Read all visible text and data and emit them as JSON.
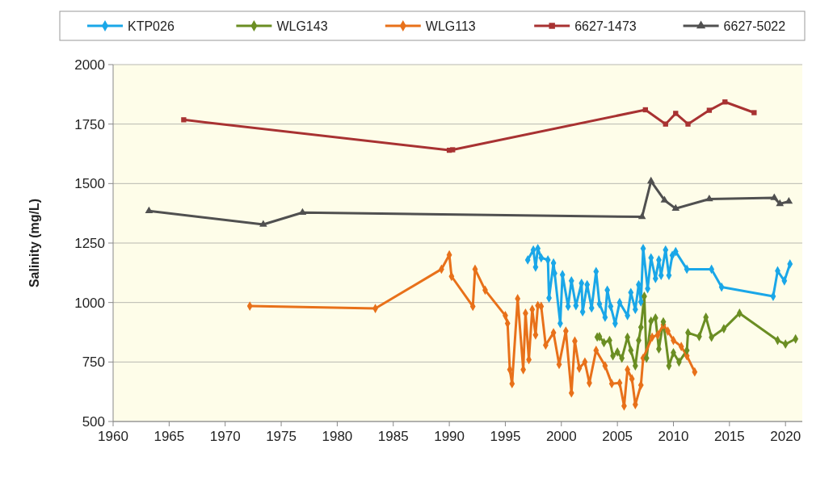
{
  "chart_data": {
    "type": "line",
    "ylabel": "Salinity (mg/L)",
    "xlim": [
      1960,
      2021.5
    ],
    "xticks": [
      1960,
      1965,
      1970,
      1975,
      1980,
      1985,
      1990,
      1995,
      2000,
      2005,
      2010,
      2015,
      2020
    ],
    "ylim": [
      500,
      2000
    ],
    "yticks": [
      500,
      750,
      1000,
      1250,
      1500,
      1750,
      2000
    ],
    "grid": "y",
    "legend": "top",
    "line_style": "solid",
    "series": [
      {
        "name": "KTP026",
        "color": "#1aa7e8",
        "marker": "diamond",
        "x": [
          1997.0,
          1997.5,
          1997.7,
          1997.9,
          1998.2,
          1998.8,
          1998.9,
          1999.3,
          1999.4,
          1999.9,
          2000.1,
          2000.6,
          2000.9,
          2001.3,
          2001.8,
          2001.9,
          2002.3,
          2002.7,
          2003.1,
          2003.4,
          2003.9,
          2004.1,
          2004.4,
          2004.8,
          2005.2,
          2005.9,
          2006.2,
          2006.6,
          2006.9,
          2007.1,
          2007.3,
          2007.7,
          2008.0,
          2008.4,
          2008.7,
          2008.9,
          2009.3,
          2009.6,
          2009.9,
          2010.2,
          2011.2,
          2013.4,
          2014.3,
          2018.9,
          2019.3,
          2019.9,
          2020.4
        ],
        "values": [
          1179,
          1221,
          1149,
          1227,
          1188,
          1179,
          1019,
          1166,
          1123,
          912,
          1117,
          984,
          1091,
          987,
          1081,
          961,
          1075,
          977,
          1130,
          994,
          938,
          1052,
          984,
          912,
          1000,
          945,
          1042,
          971,
          1075,
          1003,
          1227,
          1058,
          1188,
          1101,
          1179,
          1114,
          1221,
          1114,
          1198,
          1214,
          1140,
          1140,
          1065,
          1026,
          1133,
          1091,
          1162
        ]
      },
      {
        "name": "WLG143",
        "color": "#6b8e23",
        "marker": "diamond",
        "x": [
          2003.2,
          2003.4,
          2003.8,
          2004.3,
          2004.6,
          2005.0,
          2005.4,
          2005.9,
          2006.2,
          2006.6,
          2006.9,
          2007.1,
          2007.4,
          2007.6,
          2008.0,
          2008.4,
          2008.7,
          2009.1,
          2009.6,
          2010.0,
          2010.5,
          2011.2,
          2011.3,
          2012.3,
          2012.9,
          2013.4,
          2014.5,
          2015.9,
          2019.3,
          2020.0,
          2020.9
        ],
        "values": [
          855,
          857,
          831,
          841,
          776,
          792,
          766,
          854,
          799,
          734,
          841,
          896,
          1026,
          766,
          922,
          935,
          805,
          919,
          734,
          789,
          750,
          799,
          873,
          857,
          938,
          854,
          890,
          955,
          841,
          825,
          847
        ]
      },
      {
        "name": "WLG113",
        "color": "#e8711a",
        "marker": "diamond",
        "x": [
          1972.2,
          1983.4,
          1989.3,
          1990.0,
          1990.2,
          1992.1,
          1992.3,
          1993.2,
          1995.0,
          1995.2,
          1995.4,
          1995.6,
          1996.1,
          1996.6,
          1996.8,
          1997.1,
          1997.4,
          1997.7,
          1997.9,
          1998.2,
          1998.6,
          1999.3,
          1999.8,
          2000.4,
          2000.9,
          2001.2,
          2001.6,
          2002.1,
          2002.5,
          2003.1,
          2003.9,
          2004.5,
          2005.2,
          2005.6,
          2005.9,
          2006.3,
          2006.6,
          2007.1,
          2007.3,
          2008.1,
          2008.6,
          2009.1,
          2009.5,
          2010.0,
          2010.7,
          2011.2,
          2011.9
        ],
        "values": [
          985,
          975,
          1140,
          1200,
          1110,
          984,
          1140,
          1052,
          945,
          912,
          718,
          659,
          1016,
          718,
          955,
          760,
          971,
          864,
          987,
          984,
          821,
          873,
          740,
          880,
          620,
          838,
          724,
          750,
          662,
          799,
          734,
          659,
          662,
          565,
          718,
          679,
          571,
          653,
          766,
          854,
          864,
          906,
          880,
          841,
          815,
          776,
          708
        ]
      },
      {
        "name": "6627-1473",
        "color": "#a83232",
        "marker": "square",
        "x": [
          1966.3,
          1990.0,
          1990.3,
          2007.5,
          2009.3,
          2010.2,
          2011.3,
          2013.2,
          2014.6,
          2017.2
        ],
        "values": [
          1768,
          1640,
          1642,
          1810,
          1750,
          1795,
          1750,
          1808,
          1843,
          1798
        ]
      },
      {
        "name": "6627-5022",
        "color": "#505050",
        "marker": "triangle",
        "x": [
          1963.2,
          1973.4,
          1976.9,
          2007.2,
          2008.0,
          2009.2,
          2010.2,
          2013.2,
          2019.0,
          2019.5,
          2020.3
        ],
        "values": [
          1385,
          1328,
          1378,
          1360,
          1510,
          1430,
          1395,
          1435,
          1440,
          1415,
          1425
        ]
      }
    ]
  }
}
